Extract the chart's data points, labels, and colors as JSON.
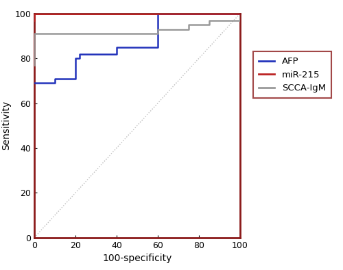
{
  "title": "",
  "xlabel": "100-specificity",
  "ylabel": "Sensitivity",
  "xlim": [
    0,
    100
  ],
  "ylim": [
    0,
    100
  ],
  "xticks": [
    0,
    20,
    40,
    60,
    80,
    100
  ],
  "yticks": [
    0,
    20,
    40,
    60,
    80,
    100
  ],
  "diagonal_color": "#bbbbbb",
  "border_color": "#8B1A1A",
  "AFP": {
    "color": "#2233BB",
    "x": [
      0,
      0,
      10,
      10,
      20,
      20,
      22,
      22,
      40,
      40,
      60,
      60,
      100
    ],
    "y": [
      69,
      69,
      69,
      71,
      71,
      80,
      80,
      82,
      82,
      85,
      85,
      100,
      100
    ]
  },
  "miR215": {
    "color": "#BB2222",
    "x": [
      0,
      0,
      5,
      5,
      100
    ],
    "y": [
      97,
      100,
      100,
      100,
      100
    ]
  },
  "SCCA_IgM": {
    "color": "#999999",
    "x": [
      0,
      0,
      1,
      1,
      60,
      60,
      75,
      75,
      85,
      85,
      100,
      100
    ],
    "y": [
      77,
      91,
      91,
      91,
      91,
      93,
      93,
      95,
      95,
      97,
      97,
      99
    ]
  },
  "legend_labels": [
    "AFP",
    "miR-215",
    "SCCA-IgM"
  ],
  "legend_colors": [
    "#2233BB",
    "#BB2222",
    "#999999"
  ],
  "legend_linewidth": 2.0,
  "curve_linewidth": 1.8,
  "border_linewidth": 2.0
}
